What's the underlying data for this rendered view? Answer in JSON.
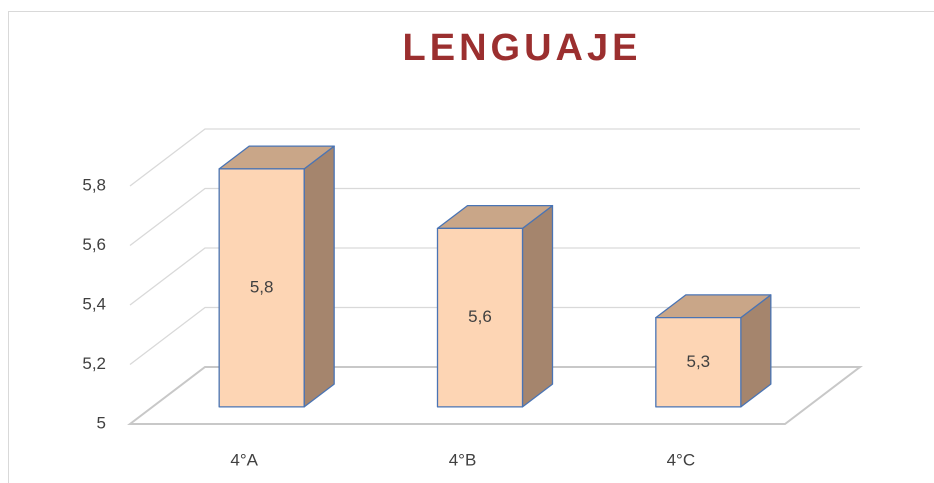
{
  "chart_data": {
    "type": "bar3d",
    "title": "LENGUAJE",
    "categories": [
      "4°A",
      "4°B",
      "4°C"
    ],
    "values": [
      5.8,
      5.6,
      5.3
    ],
    "value_labels": [
      "5,8",
      "5,6",
      "5,3"
    ],
    "color": "#fdd5b4",
    "ylim": [
      5,
      5.8
    ],
    "yticks": [
      5,
      {
        "value": 5.2,
        "label": "5,2"
      },
      {
        "value": 5.4,
        "label": "5,4"
      },
      {
        "value": 5.6,
        "label": "5,6"
      },
      {
        "value": 5.8,
        "label": "5,8"
      }
    ],
    "grid": true
  }
}
